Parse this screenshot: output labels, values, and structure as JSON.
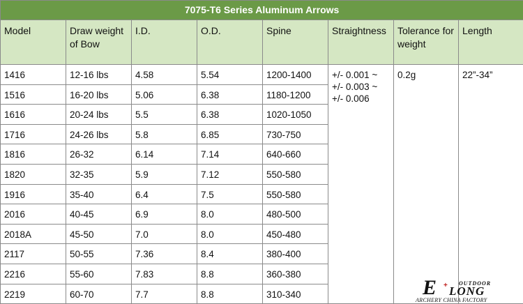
{
  "title": "7075-T6 Series Aluminum Arrows",
  "headers": [
    "Model",
    "Draw weight of Bow",
    "I.D.",
    "O.D.",
    "Spine",
    "Straightness",
    "Tolerance for weight",
    "Length"
  ],
  "rows": [
    [
      "1416",
      "12-16 lbs",
      "4.58",
      "5.54",
      "1200-1400"
    ],
    [
      "1516",
      "16-20 lbs",
      "5.06",
      "6.38",
      "1180-1200"
    ],
    [
      "1616",
      "20-24 lbs",
      "5.5",
      "6.38",
      "1020-1050"
    ],
    [
      "1716",
      "24-26 lbs",
      "5.8",
      "6.85",
      "730-750"
    ],
    [
      "1816",
      "26-32",
      "6.14",
      "7.14",
      "640-660"
    ],
    [
      "1820",
      "32-35",
      "5.9",
      "7.12",
      "550-580"
    ],
    [
      "1916",
      "35-40",
      "6.4",
      "7.5",
      "550-580"
    ],
    [
      "2016",
      "40-45",
      "6.9",
      "8.0",
      "480-500"
    ],
    [
      "2018A",
      "45-50",
      "7.0",
      "8.0",
      "450-480"
    ],
    [
      "2117",
      "50-55",
      "7.36",
      "8.4",
      "380-400"
    ],
    [
      "2216",
      "55-60",
      "7.83",
      "8.8",
      "360-380"
    ],
    [
      "2219",
      "60-70",
      "7.7",
      "8.8",
      "310-340"
    ]
  ],
  "straightness": [
    "+/- 0.001 ~",
    "+/- 0.003 ~",
    "+/- 0.006"
  ],
  "tolerance": "0.2g",
  "length": "22”-34”",
  "logo": {
    "mark": "E",
    "name": "LONG",
    "tag": "OUTDOOR",
    "subtitle": "ARCHERY CHINA FACTORY"
  },
  "colors": {
    "title_bg": "#6b9a47",
    "header_bg": "#d5e7c3",
    "border": "#8a8a8a"
  }
}
